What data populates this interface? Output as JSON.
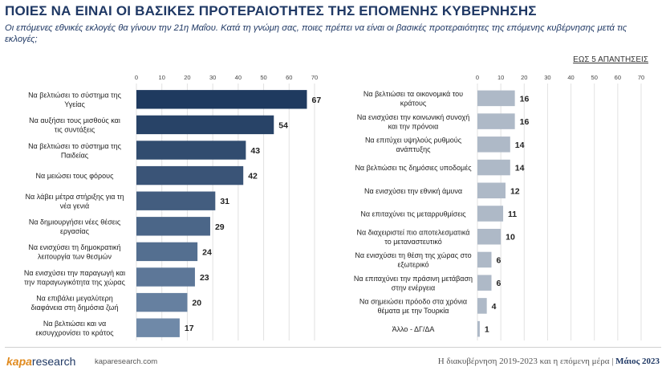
{
  "header": {
    "title": "ΠΟΙΕΣ ΝΑ ΕΙΝΑΙ ΟΙ ΒΑΣΙΚΕΣ ΠΡΟΤΕΡΑΙΟΤΗΤΕΣ ΤΗΣ ΕΠΟΜΕΝΗΣ ΚΥΒΕΡΝΗΣΗΣ",
    "subtitle": "Οι επόμενες εθνικές εκλογές θα γίνουν την 21η Μαΐου. Κατά τη γνώμη σας, ποιες πρέπει να είναι οι βασικές προτεραιότητες της επόμενης κυβέρνησης μετά τις εκλογές;",
    "note": "ΕΩΣ 5 ΑΠΑΝΤΗΣΕΙΣ"
  },
  "footer": {
    "logo_part1": "kapa",
    "logo_part2": "research",
    "site": "kaparesearch.com",
    "right_text": "Η διακυβέρνηση 2019-2023 και η επόμενη μέρα |",
    "right_date": "Μάιος 2023"
  },
  "colors": {
    "dark": "#1f3a5f",
    "light": "#aeb9c7",
    "title": "#1f3864"
  },
  "chart_data": [
    {
      "type": "bar",
      "orientation": "horizontal",
      "xlim": [
        0,
        70
      ],
      "ticks": [
        0,
        10,
        20,
        30,
        40,
        50,
        60,
        70
      ],
      "categories": [
        "Να βελτιώσει το σύστημα της Υγείας",
        "Να αυξήσει τους μισθούς και τις συντάξεις",
        "Να βελτιώσει το σύστημα της Παιδείας",
        "Να μειώσει τους φόρους",
        "Να λάβει μέτρα στήριξης για τη νέα γενιά",
        "Να δημιουργήσει νέες θέσεις εργασίας",
        "Να ενισχύσει τη δημοκρατική λειτουργία των θεσμών",
        "Να ενισχύσει την παραγωγή και την παραγωγικότητα της χώρας",
        "Να επιβάλει μεγαλύτερη διαφάνεια στη δημόσια ζωή",
        "Να βελτιώσει και να εκσυγχρονίσει το κράτος"
      ],
      "values": [
        67,
        54,
        43,
        42,
        31,
        29,
        24,
        23,
        20,
        17
      ],
      "grid": true
    },
    {
      "type": "bar",
      "orientation": "horizontal",
      "xlim": [
        0,
        70
      ],
      "ticks": [
        0,
        10,
        20,
        30,
        40,
        50,
        60,
        70
      ],
      "categories": [
        "Να βελτιώσει τα οικονομικά του κράτους",
        "Να ενισχύσει την κοινωνική συνοχή και την πρόνοια",
        "Να επιτύχει υψηλούς ρυθμούς ανάπτυξης",
        "Να βελτιώσει τις δημόσιες υποδομές",
        "Να ενισχύσει την εθνική άμυνα",
        "Να επιταχύνει τις μεταρρυθμίσεις",
        "Να διαχειριστεί πιο αποτελεσματικά το μεταναστευτικό",
        "Να ενισχύσει τη θέση της χώρας στο εξωτερικό",
        "Να επιταχύνει την πράσινη μετάβαση στην ενέργεια",
        "Να σημειώσει πρόοδο στα χρόνια θέματα με την Τουρκία",
        "Άλλο - ΔΓ/ΔΑ"
      ],
      "values": [
        16,
        16,
        14,
        14,
        12,
        11,
        10,
        6,
        6,
        4,
        1
      ],
      "grid": true
    }
  ]
}
